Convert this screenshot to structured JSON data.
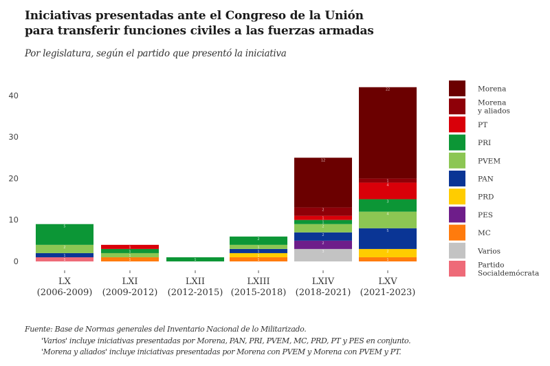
{
  "chart_data": {
    "type": "bar",
    "stacked": true,
    "title": "Iniciativas presentadas ante el Congreso de la Unión para transferir funciones civiles a las fuerzas armadas",
    "title_lines": [
      "Iniciativas presentadas ante el Congreso de la Unión",
      "para transferir funciones civiles a las fuerzas armadas"
    ],
    "subtitle": "Por legislatura, según el partido que presentó la iniciativa",
    "xlabel": "",
    "ylabel": "",
    "ylim": [
      0,
      42
    ],
    "yticks": [
      0,
      10,
      20,
      30,
      40
    ],
    "grid": false,
    "legend_position": "right",
    "categories": [
      "LX",
      "LXI",
      "LXII",
      "LXIII",
      "LXIV",
      "LXV"
    ],
    "category_periods": [
      "(2006-2009)",
      "(2009-2012)",
      "(2012-2015)",
      "(2015-2018)",
      "(2018-2021)",
      "(2021-2023)"
    ],
    "stack_order_bottom_to_top": [
      "Partido Socialdemócrata",
      "MC",
      "Varios",
      "PRD",
      "PES",
      "PAN",
      "PVEM",
      "PRI",
      "PT",
      "Morena y aliados",
      "Morena"
    ],
    "series": [
      {
        "name": "Morena",
        "legend_label": [
          "Morena"
        ],
        "color": "#6b0000",
        "values": [
          0,
          0,
          0,
          0,
          12,
          22
        ]
      },
      {
        "name": "Morena y aliados",
        "legend_label": [
          "Morena",
          "y aliados"
        ],
        "color": "#8e0008",
        "values": [
          0,
          0,
          0,
          0,
          2,
          1
        ]
      },
      {
        "name": "PT",
        "legend_label": [
          "PT"
        ],
        "color": "#d90009",
        "values": [
          0,
          1,
          0,
          0,
          1,
          4
        ]
      },
      {
        "name": "PRI",
        "legend_label": [
          "PRI"
        ],
        "color": "#0c9636",
        "values": [
          5,
          1,
          1,
          2,
          1,
          3
        ]
      },
      {
        "name": "PVEM",
        "legend_label": [
          "PVEM"
        ],
        "color": "#8cc653",
        "values": [
          2,
          1,
          0,
          1,
          2,
          4
        ]
      },
      {
        "name": "PAN",
        "legend_label": [
          "PAN"
        ],
        "color": "#0a3595",
        "values": [
          1,
          0,
          0,
          1,
          2,
          5
        ]
      },
      {
        "name": "PRD",
        "legend_label": [
          "PRD"
        ],
        "color": "#ffcc00",
        "values": [
          0,
          0,
          0,
          1,
          0,
          2
        ]
      },
      {
        "name": "PES",
        "legend_label": [
          "PES"
        ],
        "color": "#6e1d8a",
        "values": [
          0,
          0,
          0,
          0,
          2,
          0
        ]
      },
      {
        "name": "MC",
        "legend_label": [
          "MC"
        ],
        "color": "#ff7b0d",
        "values": [
          0,
          1,
          0,
          1,
          0,
          1
        ]
      },
      {
        "name": "Varios",
        "legend_label": [
          "Varios"
        ],
        "color": "#c3c3c3",
        "values": [
          0,
          0,
          0,
          0,
          3,
          0
        ]
      },
      {
        "name": "Partido Socialdemócrata",
        "legend_label": [
          "Partido",
          "Socialdemócrata"
        ],
        "color": "#ee6a78",
        "values": [
          1,
          0,
          0,
          0,
          0,
          0
        ]
      }
    ],
    "totals": [
      9,
      4,
      1,
      6,
      25,
      42
    ]
  },
  "footer": {
    "source": "Fuente: Base de Normas generales del Inventario Nacional de lo Militarizado.",
    "note_varios": "'Varios' incluye iniciativas presentadas por Morena, PAN, PRI, PVEM, MC, PRD, PT y PES en conjunto.",
    "note_aliados": "'Morena y aliados' incluye iniciativas presentadas por Morena con PVEM y Morena con PVEM y PT."
  }
}
